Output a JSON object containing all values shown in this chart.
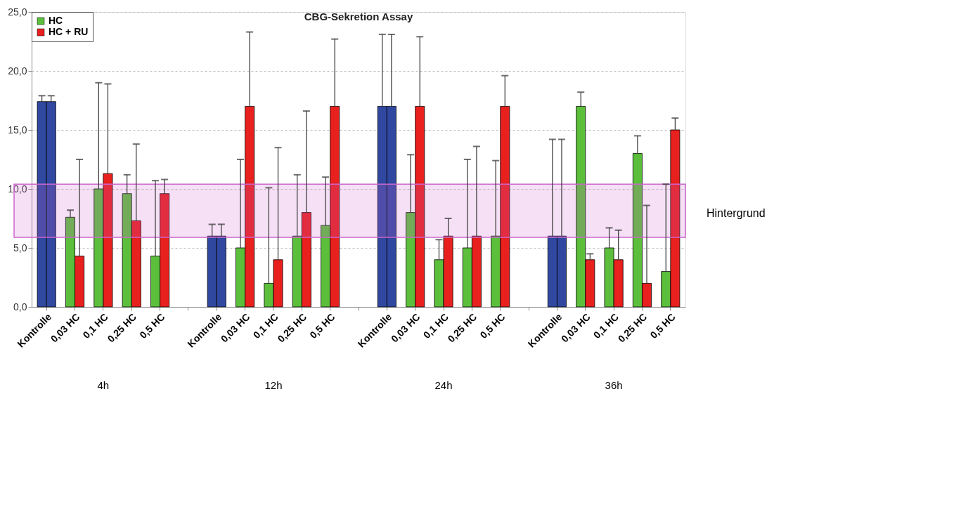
{
  "chart_data": {
    "type": "bar",
    "title": "CBG-Sekretion Assay",
    "categories": [
      "Kontrolle",
      "0,03 HC",
      "0,1 HC",
      "0,25 HC",
      "0,5 HC",
      null,
      "Kontrolle",
      "0,03 HC",
      "0,1 HC",
      "0,25 HC",
      "0,5 HC",
      null,
      "Kontrolle",
      "0,03 HC",
      "0,1 HC",
      "0,25 HC",
      "0,5 HC",
      null,
      "Kontrolle",
      "0,03 HC",
      "0,1 HC",
      "0,25 HC",
      "0,5 HC"
    ],
    "series": [
      {
        "name": "HC",
        "color": "#5cbf3c",
        "colors": [
          "#3048a0",
          "#5cbf3c",
          "#5cbf3c",
          "#5cbf3c",
          "#5cbf3c",
          null,
          "#3048a0",
          "#5cbf3c",
          "#5cbf3c",
          "#5cbf3c",
          "#5cbf3c",
          null,
          "#3048a0",
          "#5cbf3c",
          "#5cbf3c",
          "#5cbf3c",
          "#5cbf3c",
          null,
          "#3048a0",
          "#5cbf3c",
          "#5cbf3c",
          "#5cbf3c",
          "#5cbf3c"
        ],
        "values": [
          17.4,
          7.6,
          10.0,
          9.6,
          4.3,
          null,
          6.0,
          5.0,
          2.0,
          6.0,
          6.9,
          null,
          17.0,
          8.0,
          4.0,
          5.0,
          6.0,
          null,
          6.0,
          17.0,
          5.0,
          13.0,
          3.0
        ],
        "errors": [
          [
            17.4,
            17.9
          ],
          [
            7.6,
            8.2
          ],
          [
            10.0,
            19.0
          ],
          [
            9.6,
            11.2
          ],
          [
            4.3,
            10.7
          ],
          null,
          [
            6.0,
            7.0
          ],
          [
            5.0,
            12.5
          ],
          [
            2.0,
            10.1
          ],
          [
            6.0,
            11.2
          ],
          [
            6.9,
            11.0
          ],
          null,
          [
            17.0,
            23.1
          ],
          [
            8.0,
            12.9
          ],
          [
            4.0,
            5.7
          ],
          [
            5.0,
            12.5
          ],
          [
            6.0,
            12.4
          ],
          null,
          [
            6.0,
            14.2
          ],
          [
            17.0,
            18.2
          ],
          [
            5.0,
            6.7
          ],
          [
            13.0,
            14.5
          ],
          [
            3.0,
            10.4
          ]
        ]
      },
      {
        "name": "HC + RU",
        "color": "#e8201e",
        "colors": [
          "#3048a0",
          "#e8201e",
          "#e8201e",
          "#e8201e",
          "#e8201e",
          null,
          "#3048a0",
          "#e8201e",
          "#e8201e",
          "#e8201e",
          "#e8201e",
          null,
          "#3048a0",
          "#e8201e",
          "#e8201e",
          "#e8201e",
          "#e8201e",
          null,
          "#3048a0",
          "#e8201e",
          "#e8201e",
          "#e8201e",
          "#e8201e"
        ],
        "values": [
          17.4,
          4.3,
          11.3,
          7.3,
          9.6,
          null,
          6.0,
          17.0,
          4.0,
          8.0,
          17.0,
          null,
          17.0,
          17.0,
          6.0,
          6.0,
          17.0,
          null,
          6.0,
          4.0,
          4.0,
          2.0,
          15.0
        ],
        "errors": [
          [
            17.4,
            17.9
          ],
          [
            4.3,
            12.5
          ],
          [
            11.3,
            18.9
          ],
          [
            7.3,
            13.8
          ],
          [
            9.6,
            10.8
          ],
          null,
          [
            6.0,
            7.0
          ],
          [
            17.0,
            23.3
          ],
          [
            4.0,
            13.5
          ],
          [
            8.0,
            16.6
          ],
          [
            17.0,
            22.7
          ],
          null,
          [
            17.0,
            23.1
          ],
          [
            17.0,
            22.9
          ],
          [
            6.0,
            7.5
          ],
          [
            6.0,
            13.6
          ],
          [
            17.0,
            19.6
          ],
          null,
          [
            6.0,
            14.2
          ],
          [
            4.0,
            4.5
          ],
          [
            4.0,
            6.5
          ],
          [
            2.0,
            8.6
          ],
          [
            15.0,
            16.0
          ]
        ]
      }
    ],
    "ylim": [
      0,
      25
    ],
    "yticks": [
      {
        "value": 0,
        "label": "0,0"
      },
      {
        "value": 5,
        "label": "5,0"
      },
      {
        "value": 10,
        "label": "10,0"
      },
      {
        "value": 15,
        "label": "15,0"
      },
      {
        "value": 20,
        "label": "20,0"
      },
      {
        "value": 25,
        "label": "25,0"
      }
    ],
    "grid": "y",
    "legend": "top left",
    "bands": [
      {
        "axis": "y",
        "from": 5.9,
        "to": 10.4,
        "label": "Hintergrund",
        "color": "#cc66cc"
      }
    ],
    "annotations": [
      "4h",
      "12h",
      "24h",
      "36h"
    ]
  }
}
